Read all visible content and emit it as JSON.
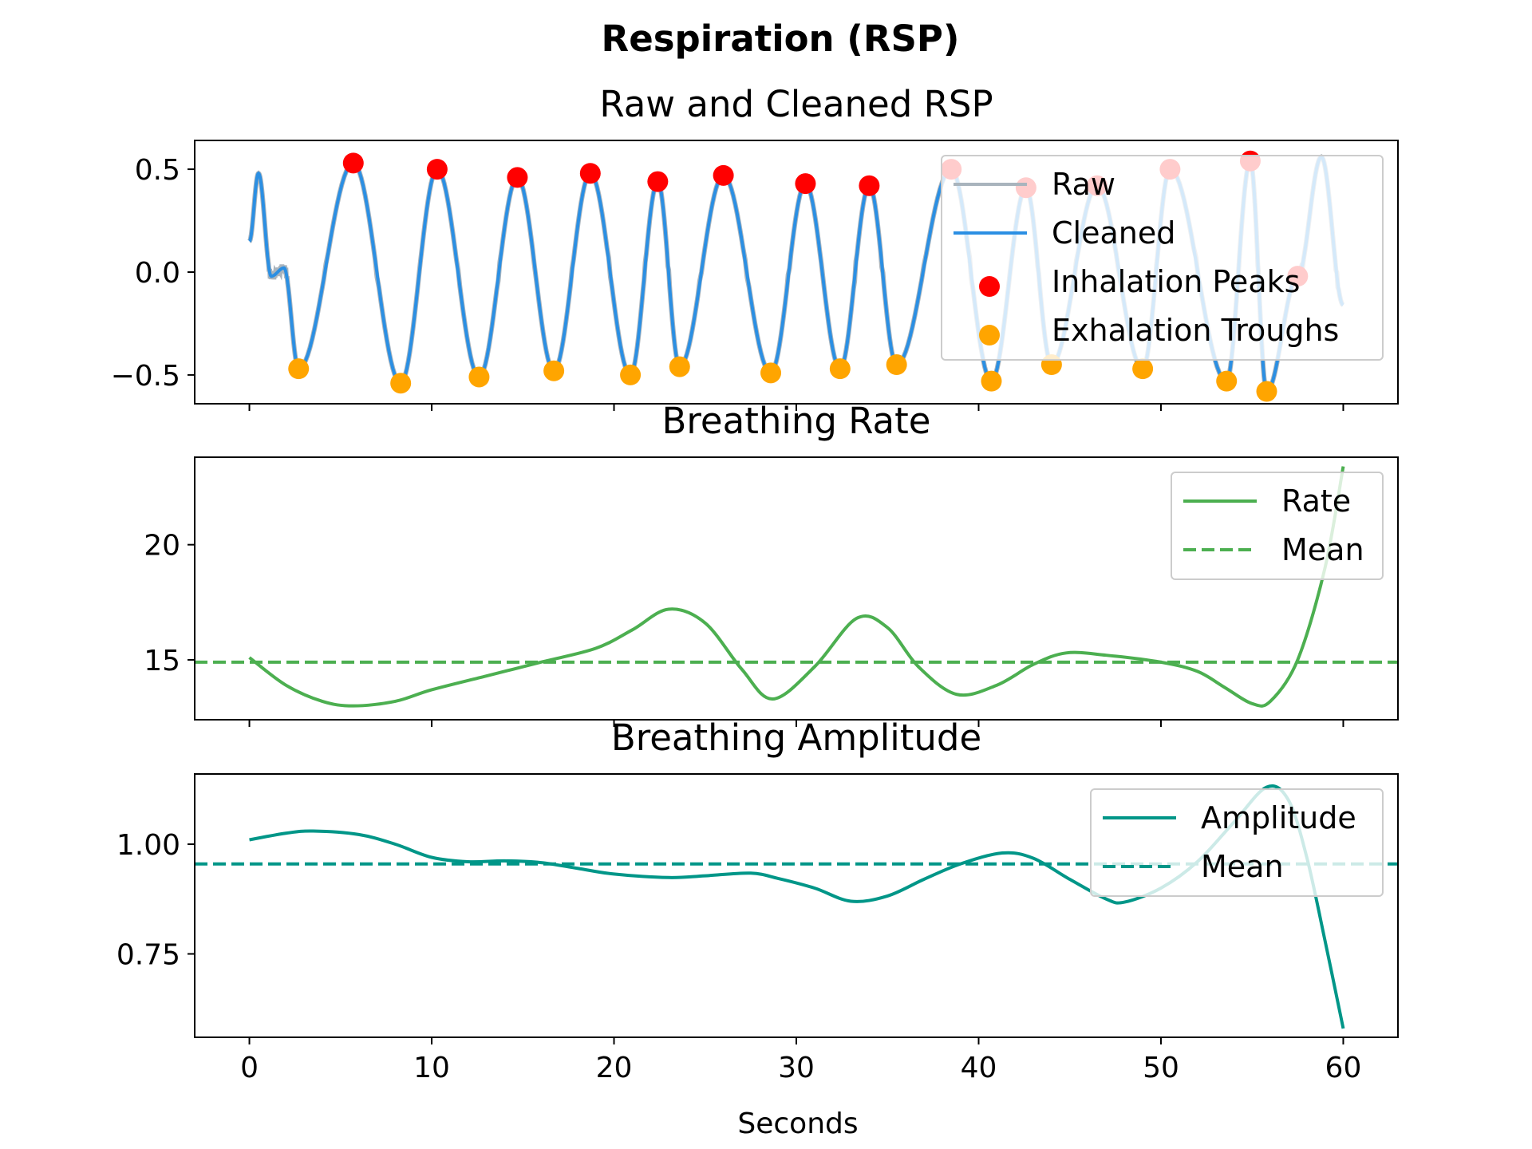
{
  "figure": {
    "suptitle": "Respiration (RSP)",
    "xlabel": "Seconds"
  },
  "chart_data": [
    {
      "type": "line",
      "title": "Raw and Cleaned RSP",
      "xlim": [
        -3,
        63
      ],
      "ylim": [
        -0.64,
        0.64
      ],
      "y_ticks": [
        -0.5,
        0.0,
        0.5
      ],
      "y_tick_labels": [
        "−0.5",
        "0.0",
        "0.5"
      ],
      "legend_position": "upper right",
      "series": [
        {
          "name": "Raw",
          "color": "#a9b4bd",
          "kind": "line"
        },
        {
          "name": "Cleaned",
          "color": "#2b8fe3",
          "kind": "line"
        },
        {
          "name": "Inhalation Peaks",
          "color": "#ff0000",
          "kind": "scatter",
          "x": [
            5.7,
            10.3,
            14.7,
            18.7,
            22.4,
            26.0,
            30.5,
            34.0,
            38.5,
            42.6,
            46.5,
            50.5,
            54.9,
            57.5
          ],
          "y": [
            0.53,
            0.5,
            0.46,
            0.48,
            0.44,
            0.47,
            0.43,
            0.42,
            0.5,
            0.41,
            0.42,
            0.5,
            0.54,
            -0.02
          ]
        },
        {
          "name": "Exhalation Troughs",
          "color": "#ffa500",
          "kind": "scatter",
          "x": [
            2.7,
            8.3,
            12.6,
            16.7,
            20.9,
            23.6,
            28.6,
            32.4,
            35.5,
            40.7,
            44.0,
            49.0,
            53.6,
            55.8
          ],
          "y": [
            -0.47,
            -0.54,
            -0.51,
            -0.48,
            -0.5,
            -0.46,
            -0.49,
            -0.47,
            -0.45,
            -0.53,
            -0.45,
            -0.47,
            -0.53,
            -0.58
          ]
        }
      ]
    },
    {
      "type": "line",
      "title": "Breathing Rate",
      "xlim": [
        -3,
        63
      ],
      "ylim": [
        12.4,
        23.8
      ],
      "y_ticks": [
        15,
        20
      ],
      "y_tick_labels": [
        "15",
        "20"
      ],
      "legend_position": "upper right",
      "series": [
        {
          "name": "Rate",
          "color": "#4caf50",
          "style": "solid",
          "x": [
            0,
            2,
            4,
            5.7,
            8,
            10,
            13,
            16,
            19,
            21,
            23,
            25,
            27,
            28.7,
            31,
            33.3,
            35,
            36.7,
            38.8,
            41,
            43,
            44.8,
            47,
            50,
            52,
            53.5,
            55,
            56,
            57.5,
            59,
            60
          ],
          "y": [
            15.1,
            13.9,
            13.2,
            13.0,
            13.2,
            13.7,
            14.3,
            14.9,
            15.5,
            16.3,
            17.2,
            16.6,
            14.6,
            13.3,
            14.7,
            16.8,
            16.4,
            14.7,
            13.5,
            13.9,
            14.8,
            15.3,
            15.2,
            14.9,
            14.5,
            13.8,
            13.1,
            13.2,
            15.0,
            19.0,
            23.4
          ]
        },
        {
          "name": "Mean",
          "color": "#4caf50",
          "style": "dashed",
          "value": 14.9
        }
      ]
    },
    {
      "type": "line",
      "title": "Breathing Amplitude",
      "xlim": [
        -3,
        63
      ],
      "ylim": [
        0.56,
        1.16
      ],
      "y_ticks": [
        0.75,
        1.0
      ],
      "y_tick_labels": [
        "0.75",
        "1.00"
      ],
      "legend_position": "upper right",
      "series": [
        {
          "name": "Amplitude",
          "color": "#009688",
          "style": "solid",
          "x": [
            0,
            2,
            3.5,
            6,
            8,
            10,
            12,
            14,
            16,
            18,
            20,
            23,
            25,
            27.5,
            29,
            31,
            33,
            35,
            37,
            39,
            41.3,
            43,
            45,
            47,
            48,
            50,
            52,
            54,
            55.8,
            57,
            58,
            59,
            60
          ],
          "y": [
            1.01,
            1.025,
            1.03,
            1.022,
            1.0,
            0.97,
            0.96,
            0.962,
            0.958,
            0.945,
            0.932,
            0.924,
            0.928,
            0.934,
            0.922,
            0.9,
            0.87,
            0.882,
            0.92,
            0.955,
            0.98,
            0.968,
            0.92,
            0.875,
            0.868,
            0.9,
            0.96,
            1.05,
            1.13,
            1.1,
            0.97,
            0.78,
            0.58
          ]
        },
        {
          "name": "Mean",
          "color": "#009688",
          "style": "dashed",
          "value": 0.955
        }
      ]
    }
  ]
}
